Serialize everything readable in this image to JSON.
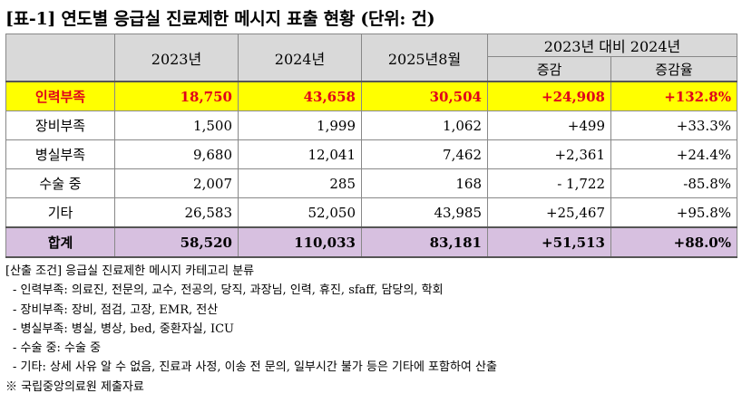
{
  "title": "[표-1] 연도별 응급실 진료제한 메시지 표출 현황 (단위: 건)",
  "header": {
    "col_2023": "2023년",
    "col_2024": "2024년",
    "col_2025": "2025년8월",
    "compare_group": "2023년 대비 2024년",
    "col_change": "증감",
    "col_rate": "증감율"
  },
  "rows": [
    {
      "label": "인력부족",
      "y2023": "18,750",
      "y2024": "43,658",
      "y2025": "30,504",
      "change": "+24,908",
      "rate": "+132.8%"
    },
    {
      "label": "장비부족",
      "y2023": "1,500",
      "y2024": "1,999",
      "y2025": "1,062",
      "change": "+499",
      "rate": "+33.3%"
    },
    {
      "label": "병실부족",
      "y2023": "9,680",
      "y2024": "12,041",
      "y2025": "7,462",
      "change": "+2,361",
      "rate": "+24.4%"
    },
    {
      "label": "수술 중",
      "y2023": "2,007",
      "y2024": "285",
      "y2025": "168",
      "change": "- 1,722",
      "rate": "-85.8%"
    },
    {
      "label": "기타",
      "y2023": "26,583",
      "y2024": "52,050",
      "y2025": "43,985",
      "change": "+25,467",
      "rate": "+95.8%"
    },
    {
      "label": "합계",
      "y2023": "58,520",
      "y2024": "110,033",
      "y2025": "83,181",
      "change": "+51,513",
      "rate": "+88.0%"
    }
  ],
  "notes": [
    "[산출 조건] 응급실 진료제한 메시지 카테고리 분류",
    " - 인력부족: 의료진, 전문의, 교수, 전공의, 당직, 과장님, 인력, 휴진, sfaff, 담당의, 학회",
    " - 장비부족: 장비, 점검, 고장, EMR, 전산",
    " - 병실부족: 병실, 병상, bed, 중환자실, ICU",
    " - 수술 중: 수술 중",
    " - 기타: 상세 사유 알 수 없음, 진료과 사정, 이송 전 문의, 일부시간 불가 등은 기타에 포함하여 산출",
    "※ 국립중앙의료원 제출자료"
  ],
  "colors": {
    "highlight_bg": "#ffff00",
    "highlight_text": "#e0001b",
    "total_bg": "#d7c0e0",
    "header_bg": "#d9d9d9"
  }
}
